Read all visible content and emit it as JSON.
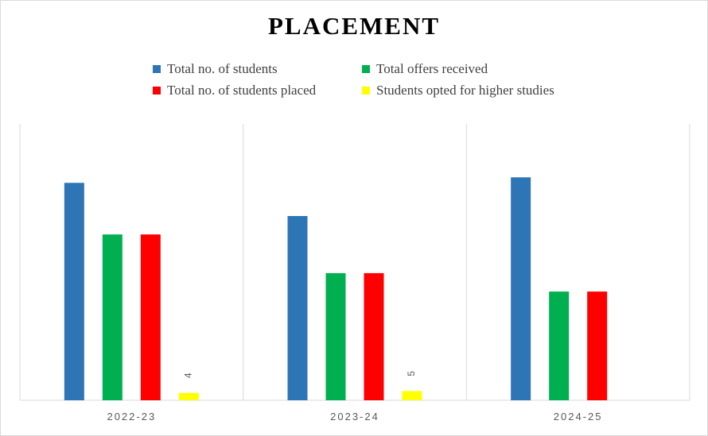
{
  "chart_data": {
    "type": "bar",
    "title": "PLACEMENT",
    "xlabel": "",
    "ylabel": "",
    "categories": [
      "2022-23",
      "2023-24",
      "2024-25"
    ],
    "series": [
      {
        "name": "Total no. of students",
        "color": "#2E75B6",
        "values": [
          118,
          100,
          121
        ]
      },
      {
        "name": "Total offers received",
        "color": "#00B050",
        "values": [
          90,
          69,
          59
        ]
      },
      {
        "name": "Total no. of students placed",
        "color": "#FF0000",
        "values": [
          90,
          69,
          59
        ]
      },
      {
        "name": "Students opted for higher studies",
        "color": "#FFFF00",
        "values": [
          4,
          5,
          0
        ],
        "data_labels": [
          "4",
          "5",
          ""
        ]
      }
    ],
    "ylim": [
      0,
      150
    ],
    "grid": false,
    "legend": "top"
  }
}
